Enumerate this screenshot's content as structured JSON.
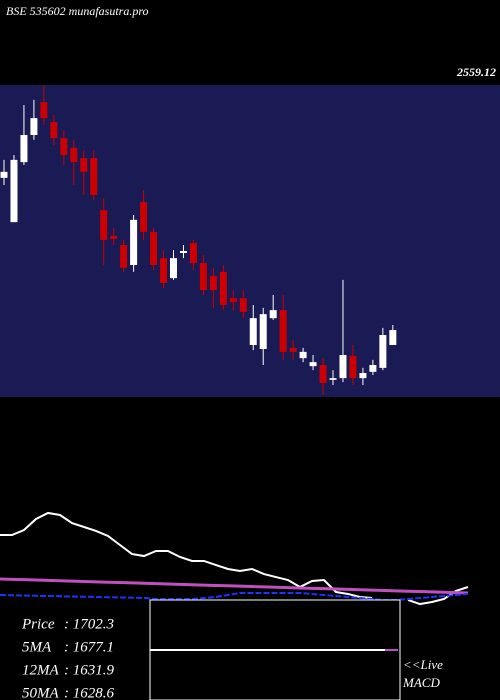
{
  "header": {
    "title": "BSE 535602 munafasutra.pro",
    "price_label": "2559.12"
  },
  "chart_data": [
    {
      "type": "candlestick",
      "ylim": [
        1468,
        2560
      ],
      "up_color": "#ffffff",
      "down_color": "#cc0000",
      "background": "#1a1a55",
      "open": [
        2235,
        2080,
        2290,
        2385,
        2500,
        2430,
        2374,
        2340,
        2304,
        2304,
        2122,
        2032,
        2000,
        1930,
        2150,
        2046,
        1954,
        1884,
        1972,
        2007,
        1937,
        1892,
        1906,
        1814,
        1814,
        1650,
        1636,
        1744,
        1772,
        1640,
        1604,
        1576,
        1580,
        1528,
        1534,
        1612,
        1534,
        1556,
        1570,
        1650
      ],
      "high": [
        2298,
        2315,
        2490,
        2508,
        2560,
        2455,
        2402,
        2368,
        2332,
        2332,
        2164,
        2060,
        2018,
        2105,
        2192,
        2060,
        1982,
        1982,
        2000,
        2018,
        1965,
        1920,
        1930,
        1842,
        1842,
        1790,
        1780,
        1825,
        1825,
        1668,
        1640,
        1615,
        1604,
        1562,
        1878,
        1650,
        1570,
        1598,
        1710,
        1720
      ],
      "low": [
        2210,
        2080,
        2280,
        2368,
        2420,
        2350,
        2280,
        2210,
        2175,
        2158,
        1930,
        2000,
        1906,
        1906,
        2018,
        1912,
        1850,
        1878,
        1954,
        1912,
        1825,
        1780,
        1772,
        1772,
        1744,
        1632,
        1580,
        1738,
        1598,
        1598,
        1590,
        1562,
        1475,
        1510,
        1520,
        1510,
        1510,
        1545,
        1562,
        1650
      ],
      "close": [
        2256,
        2298,
        2385,
        2444,
        2444,
        2374,
        2315,
        2290,
        2256,
        2175,
        2018,
        2021,
        1920,
        2088,
        2046,
        1930,
        1867,
        1954,
        1979,
        1937,
        1842,
        1842,
        1790,
        1800,
        1766,
        1744,
        1758,
        1772,
        1626,
        1626,
        1626,
        1590,
        1517,
        1534,
        1615,
        1534,
        1552,
        1580,
        1685,
        1702.3
      ]
    },
    {
      "type": "line",
      "ylim": [
        0,
        100
      ],
      "series": [
        {
          "color": "#ffffff",
          "values": [
            70.8,
            70.8,
            75,
            84.2,
            89.2,
            87.5,
            80.8,
            77.5,
            74.2,
            70,
            62.5,
            55,
            53.3,
            57.5,
            57.5,
            52.5,
            49.2,
            49.2,
            45.8,
            42.5,
            40.8,
            42.5,
            38.3,
            35.8,
            33.3,
            27.5,
            32.5,
            33.3,
            23.3,
            21.7,
            19.2,
            18.3,
            null,
            null,
            16.7,
            13.3,
            15,
            17.5,
            24.2,
            27.5
          ]
        },
        {
          "color": "#c050c0",
          "values": [
            34.2,
            33.9,
            33.6,
            33.3,
            33,
            32.7,
            32.4,
            32.1,
            31.8,
            31.5,
            31.2,
            30.9,
            30.6,
            30.3,
            30,
            29.7,
            29.4,
            29.1,
            28.8,
            28.5,
            28.2,
            27.9,
            27.6,
            27.3,
            27,
            26.7,
            26.4,
            26.1,
            25.8,
            25.5,
            25.2,
            24.9,
            24.6,
            24.3,
            24,
            23.7,
            23.4,
            23.1,
            22.8,
            22.5
          ]
        },
        {
          "color": "#2030ff",
          "values": [
            20.8,
            20.6,
            20.4,
            20.2,
            20,
            19.8,
            19.6,
            19.4,
            19.2,
            19,
            18.8,
            18.6,
            18.4,
            17.5,
            17.5,
            17.5,
            17.5,
            18.3,
            19.2,
            20.8,
            22.5,
            22.5,
            22.5,
            22.5,
            22.5,
            22.5,
            21.7,
            20.8,
            20,
            19.2,
            18.3,
            17.5,
            16.7,
            16.7,
            17.5,
            18.3,
            19.2,
            20,
            20.8,
            21.7
          ]
        }
      ]
    }
  ],
  "stats": [
    {
      "label": "Price",
      "text": ": 1702.3"
    },
    {
      "label": "5MA",
      "text": ": 1677.1"
    },
    {
      "label": "12MA",
      "text": ": 1631.9"
    },
    {
      "label": "50MA",
      "text": ": 1628.6"
    }
  ],
  "live": "<<Live",
  "macd": "MACD"
}
